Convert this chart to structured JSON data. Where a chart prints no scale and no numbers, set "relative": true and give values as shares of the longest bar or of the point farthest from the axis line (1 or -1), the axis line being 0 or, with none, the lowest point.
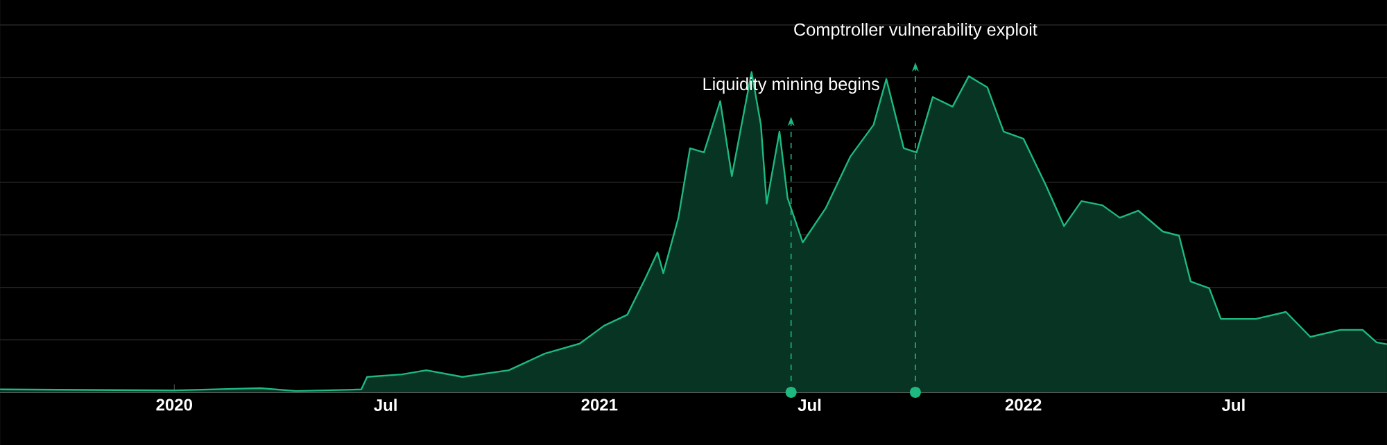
{
  "chart_data": {
    "type": "area",
    "relative": true,
    "color": "#1db980",
    "grid": "y",
    "x": [
      "2019-08-04",
      "2020-01-01",
      "2020-03-15",
      "2020-04-15",
      "2020-06-10",
      "2020-06-15",
      "2020-07-15",
      "2020-08-05",
      "2020-09-05",
      "2020-10-15",
      "2020-11-15",
      "2020-12-15",
      "2021-01-05",
      "2021-01-25",
      "2021-02-10",
      "2021-02-20",
      "2021-02-25",
      "2021-03-10",
      "2021-03-20",
      "2021-04-01",
      "2021-04-15",
      "2021-04-25",
      "2021-05-05",
      "2021-05-12",
      "2021-05-20",
      "2021-05-25",
      "2021-06-05",
      "2021-06-12",
      "2021-06-25",
      "2021-07-15",
      "2021-08-05",
      "2021-08-25",
      "2021-09-05",
      "2021-09-20",
      "2021-10-01",
      "2021-10-15",
      "2021-11-01",
      "2021-11-15",
      "2021-12-01",
      "2021-12-15",
      "2022-01-01",
      "2022-01-20",
      "2022-02-05",
      "2022-02-20",
      "2022-03-10",
      "2022-03-25",
      "2022-04-10",
      "2022-05-01",
      "2022-05-15",
      "2022-05-25",
      "2022-06-10",
      "2022-06-20",
      "2022-07-20",
      "2022-08-15",
      "2022-09-05",
      "2022-10-01",
      "2022-10-20",
      "2022-11-01",
      "2022-11-10"
    ],
    "values": [
      0.009,
      0.006,
      0.013,
      0.004,
      0.009,
      0.048,
      0.056,
      0.069,
      0.048,
      0.069,
      0.121,
      0.152,
      0.208,
      0.242,
      0.359,
      0.437,
      0.372,
      0.545,
      0.762,
      0.749,
      0.909,
      0.675,
      0.866,
      1.0,
      0.835,
      0.589,
      0.814,
      0.606,
      0.468,
      0.576,
      0.736,
      0.835,
      0.978,
      0.762,
      0.749,
      0.922,
      0.892,
      0.987,
      0.952,
      0.814,
      0.792,
      0.649,
      0.519,
      0.597,
      0.584,
      0.545,
      0.567,
      0.502,
      0.489,
      0.346,
      0.325,
      0.229,
      0.229,
      0.251,
      0.173,
      0.195,
      0.195,
      0.156,
      0.15
    ],
    "xlim": [
      "2019-08-04",
      "2022-11-10"
    ],
    "xticks": [
      {
        "value": "2020-01-01",
        "label": "2020"
      },
      {
        "value": "2020-07-01",
        "label": "Jul"
      },
      {
        "value": "2021-01-01",
        "label": "2021"
      },
      {
        "value": "2021-07-01",
        "label": "Jul"
      },
      {
        "value": "2022-01-01",
        "label": "2022"
      },
      {
        "value": "2022-07-01",
        "label": "Jul"
      }
    ],
    "ref_lines": [
      {
        "axis": "x",
        "value": "2021-06-15",
        "label": "Liquidity mining begins",
        "color": "#1db980",
        "line_style": "dashed"
      },
      {
        "axis": "x",
        "value": "2021-09-30",
        "label": "Comptroller vulnerability exploit",
        "color": "#1db980",
        "line_style": "dashed"
      }
    ]
  }
}
